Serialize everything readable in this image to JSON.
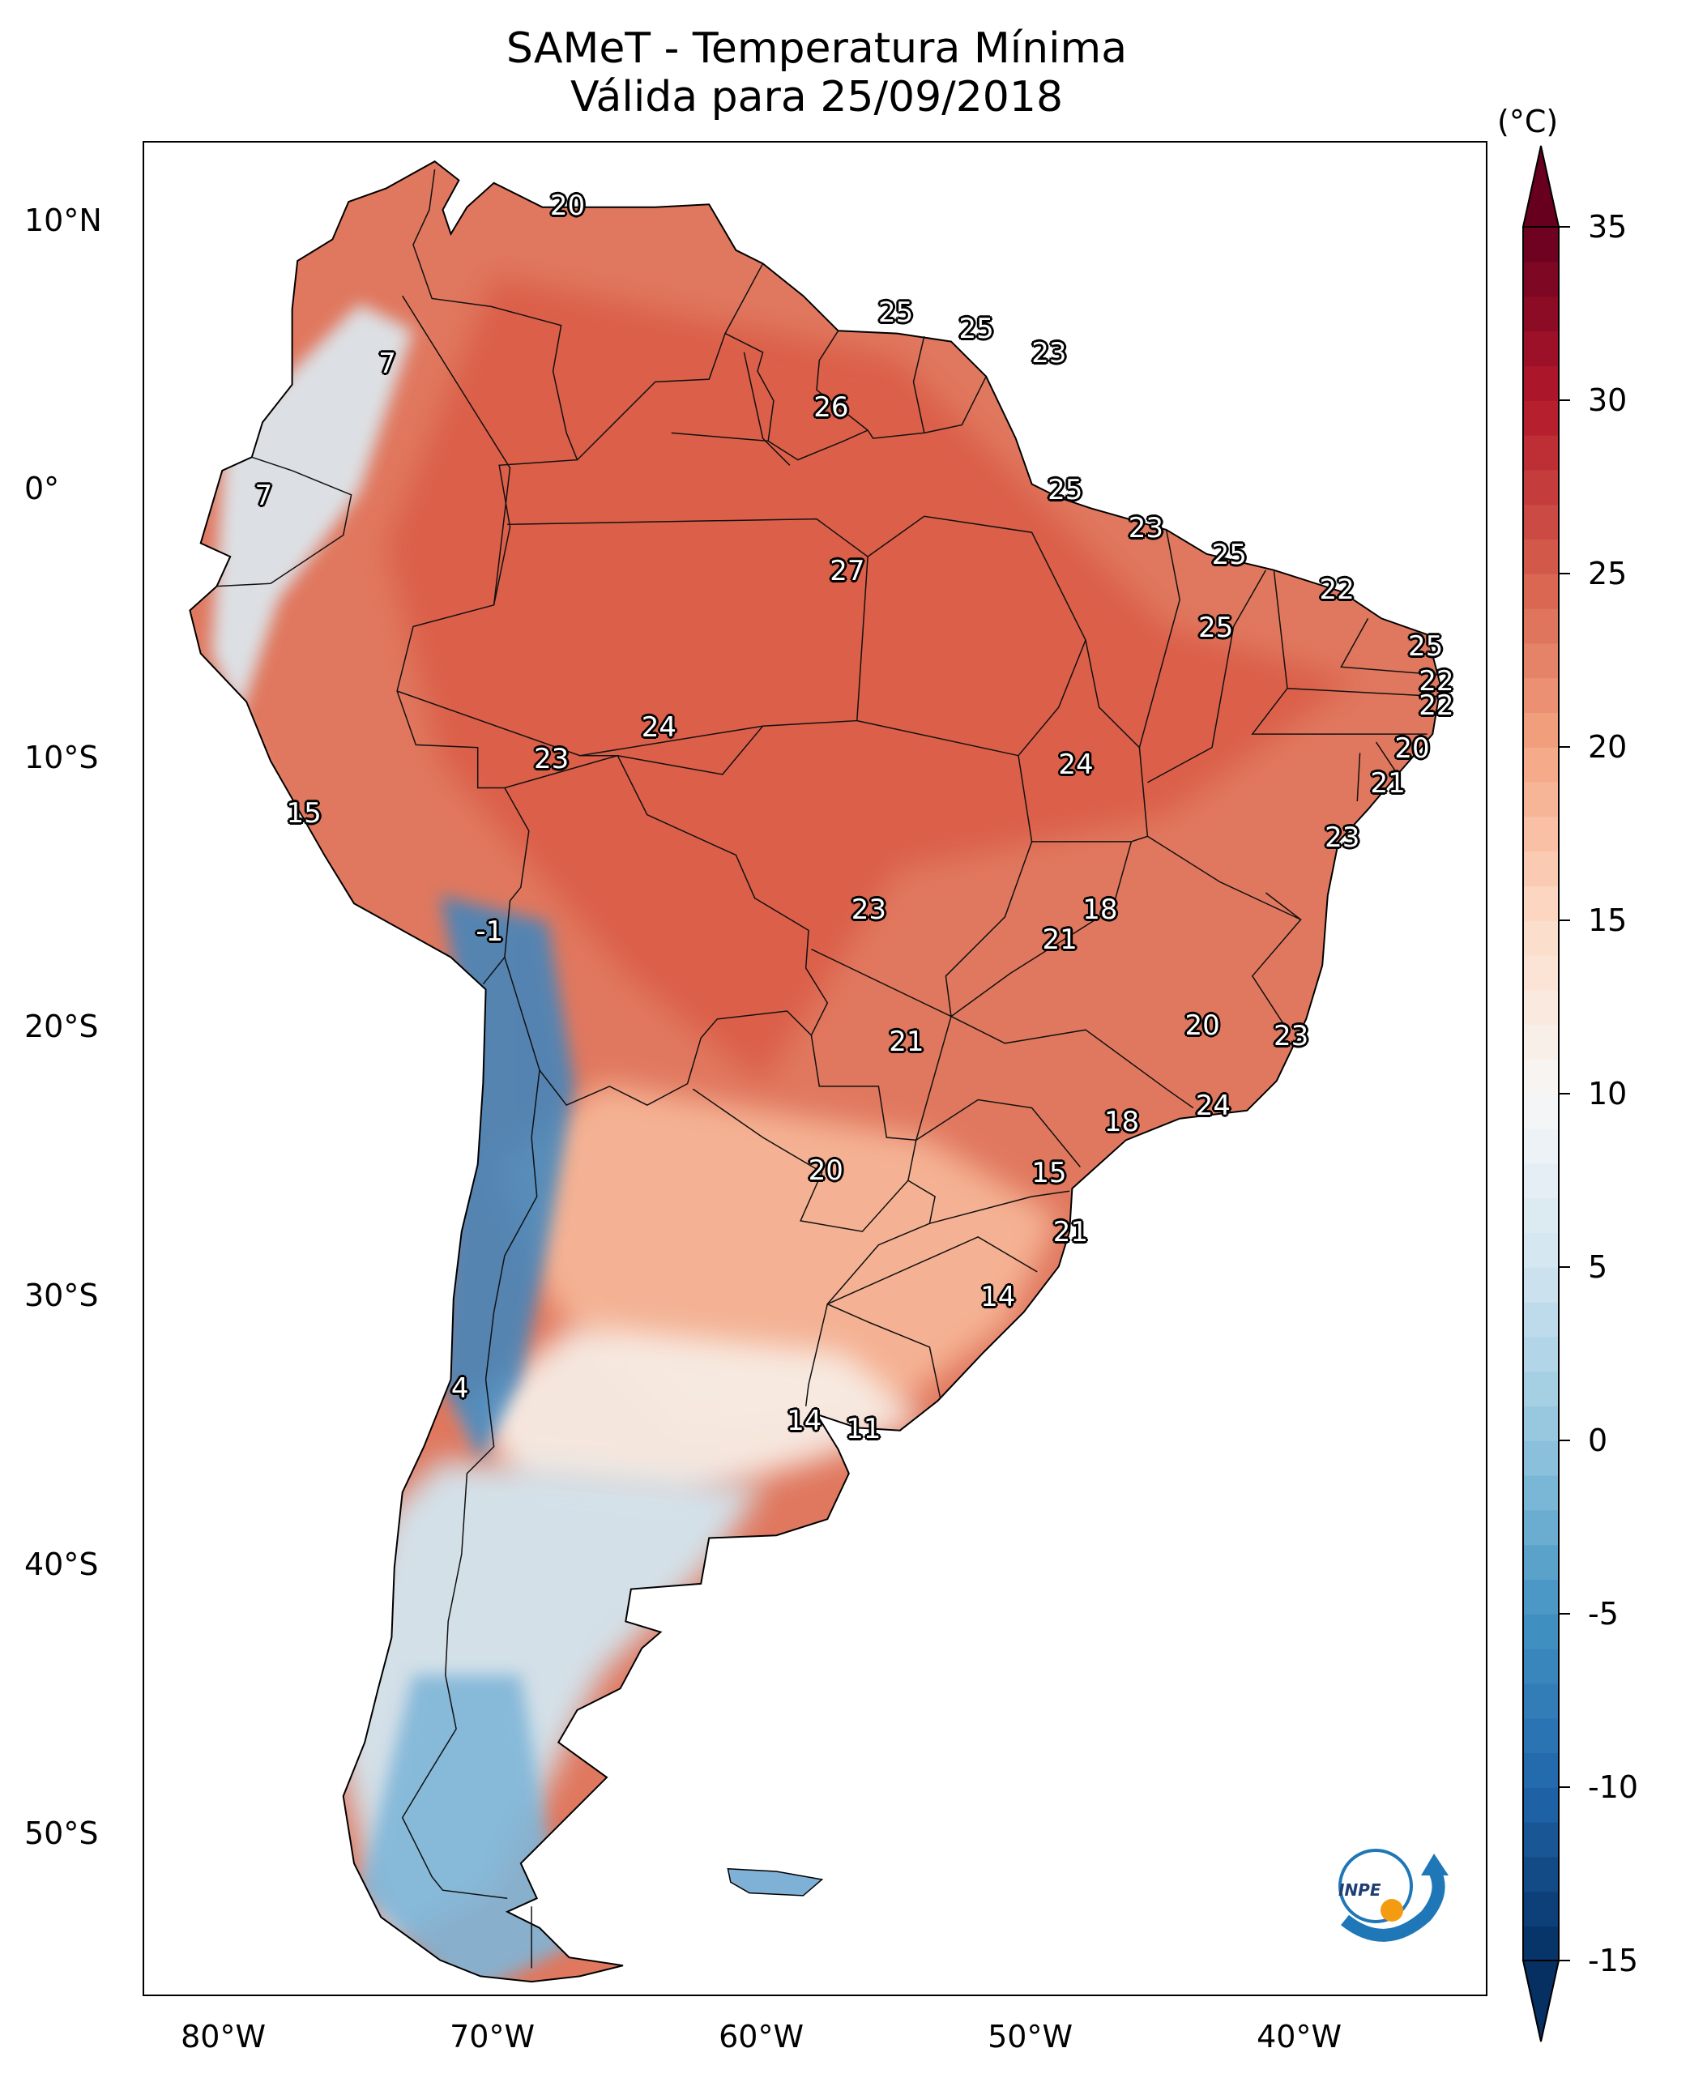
{
  "title_line1": "SAMeT - Temperatura Mínima",
  "title_line2": "Válida para 25/09/2018",
  "colorbar": {
    "unit": "(°C)",
    "min": -15,
    "max": 35,
    "ticks": [
      "35",
      "30",
      "25",
      "20",
      "15",
      "10",
      "5",
      "0",
      "-5",
      "-10",
      "-15"
    ],
    "colormap": "RdBu_r",
    "extend": "both"
  },
  "axes": {
    "lat_labels": [
      "10°N",
      "0°",
      "10°S",
      "20°S",
      "30°S",
      "40°S",
      "50°S"
    ],
    "lon_labels": [
      "80°W",
      "70°W",
      "60°W",
      "50°W",
      "40°W"
    ],
    "lon_range": [
      -83,
      -33
    ],
    "lat_range": [
      13,
      -56
    ]
  },
  "station_values": [
    {
      "lon": -67.2,
      "lat": 10.6,
      "text": "20"
    },
    {
      "lon": -55.0,
      "lat": 6.6,
      "text": "25"
    },
    {
      "lon": -52.0,
      "lat": 6.0,
      "text": "25"
    },
    {
      "lon": -49.3,
      "lat": 5.1,
      "text": "23"
    },
    {
      "lon": -57.4,
      "lat": 3.1,
      "text": "26"
    },
    {
      "lon": -73.9,
      "lat": 4.7,
      "text": "7"
    },
    {
      "lon": -78.5,
      "lat": -0.2,
      "text": "7"
    },
    {
      "lon": -48.7,
      "lat": 0.0,
      "text": "25"
    },
    {
      "lon": -45.7,
      "lat": -1.4,
      "text": "23"
    },
    {
      "lon": -42.6,
      "lat": -2.4,
      "text": "25"
    },
    {
      "lon": -38.6,
      "lat": -3.7,
      "text": "22"
    },
    {
      "lon": -56.8,
      "lat": -3.0,
      "text": "27"
    },
    {
      "lon": -43.1,
      "lat": -5.1,
      "text": "25"
    },
    {
      "lon": -35.3,
      "lat": -5.8,
      "text": "25"
    },
    {
      "lon": -34.9,
      "lat": -7.1,
      "text": "22"
    },
    {
      "lon": -34.9,
      "lat": -8.0,
      "text": "22"
    },
    {
      "lon": -35.8,
      "lat": -9.6,
      "text": "20"
    },
    {
      "lon": -36.7,
      "lat": -10.9,
      "text": "21"
    },
    {
      "lon": -38.4,
      "lat": -12.9,
      "text": "23"
    },
    {
      "lon": -63.8,
      "lat": -8.8,
      "text": "24"
    },
    {
      "lon": -67.8,
      "lat": -10.0,
      "text": "23"
    },
    {
      "lon": -48.3,
      "lat": -10.2,
      "text": "24"
    },
    {
      "lon": -77.0,
      "lat": -12.0,
      "text": "15"
    },
    {
      "lon": -70.1,
      "lat": -16.4,
      "text": "-1"
    },
    {
      "lon": -56.0,
      "lat": -15.6,
      "text": "23"
    },
    {
      "lon": -47.4,
      "lat": -15.6,
      "text": "18"
    },
    {
      "lon": -48.9,
      "lat": -16.7,
      "text": "21"
    },
    {
      "lon": -54.6,
      "lat": -20.5,
      "text": "21"
    },
    {
      "lon": -43.6,
      "lat": -19.9,
      "text": "20"
    },
    {
      "lon": -40.3,
      "lat": -20.3,
      "text": "23"
    },
    {
      "lon": -43.2,
      "lat": -22.9,
      "text": "24"
    },
    {
      "lon": -46.6,
      "lat": -23.5,
      "text": "18"
    },
    {
      "lon": -57.6,
      "lat": -25.3,
      "text": "20"
    },
    {
      "lon": -49.3,
      "lat": -25.4,
      "text": "15"
    },
    {
      "lon": -48.5,
      "lat": -27.6,
      "text": "21"
    },
    {
      "lon": -51.2,
      "lat": -30.0,
      "text": "14"
    },
    {
      "lon": -71.2,
      "lat": -33.4,
      "text": "4"
    },
    {
      "lon": -58.4,
      "lat": -34.6,
      "text": "14"
    },
    {
      "lon": -56.2,
      "lat": -34.9,
      "text": "11"
    }
  ],
  "logo": {
    "text": "INPE"
  }
}
